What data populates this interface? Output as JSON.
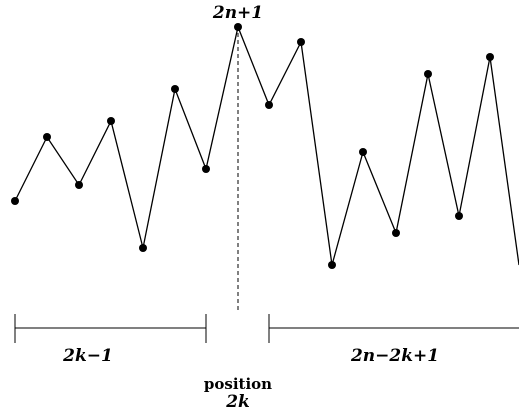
{
  "diagram": {
    "peak_label": "2n+1",
    "left_segment_label": "2k−1",
    "right_segment_label": "2n−2k+1",
    "position_label": "position",
    "position_value": "2k"
  }
}
